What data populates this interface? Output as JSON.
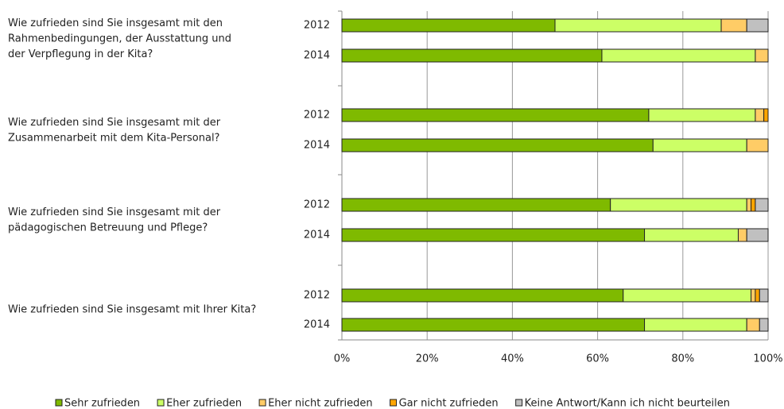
{
  "chart_data": {
    "type": "stacked-bar-horizontal",
    "groups": [
      [
        "Wie zufrieden sind Sie insgesamt mit den",
        "Rahmenbedingungen, der Ausstattung und",
        "der Verpflegung in der Kita?"
      ],
      [
        "Wie zufrieden sind Sie insgesamt mit der",
        "Zusammenarbeit mit dem Kita-Personal?"
      ],
      [
        "Wie zufrieden sind Sie insgesamt mit der",
        "pädagogischen Betreuung und Pflege?"
      ],
      [
        "Wie zufrieden sind Sie insgesamt mit Ihrer Kita?"
      ]
    ],
    "categories": [
      "2012",
      "2014",
      "2012",
      "2014",
      "2012",
      "2014",
      "2012",
      "2014"
    ],
    "series": [
      {
        "name": "Sehr zufrieden",
        "color": "#7fba00",
        "values": [
          50,
          61,
          72,
          73,
          63,
          71,
          66,
          71
        ]
      },
      {
        "name": "Eher zufrieden",
        "color": "#ccff66",
        "values": [
          39,
          36,
          25,
          22,
          32,
          22,
          30,
          24
        ]
      },
      {
        "name": "Eher nicht zufrieden",
        "color": "#ffcc66",
        "values": [
          6,
          3,
          2,
          5,
          1,
          2,
          1,
          3
        ]
      },
      {
        "name": "Gar nicht zufrieden",
        "color": "#ffa500",
        "values": [
          0,
          0,
          1,
          0,
          1,
          0,
          1,
          0
        ]
      },
      {
        "name": "Keine Antwort/Kann ich nicht beurteilen",
        "color": "#c0c0c0",
        "values": [
          5,
          0,
          0,
          0,
          3,
          5,
          2,
          2
        ]
      }
    ],
    "xlim": [
      0,
      100
    ],
    "xticks": [
      {
        "value": 0,
        "label": "0%"
      },
      {
        "value": 20,
        "label": "20%"
      },
      {
        "value": 40,
        "label": "40%"
      },
      {
        "value": 60,
        "label": "60%"
      },
      {
        "value": 80,
        "label": "80%"
      },
      {
        "value": 100,
        "label": "100%"
      }
    ],
    "grid": true,
    "legend": "bottom"
  }
}
